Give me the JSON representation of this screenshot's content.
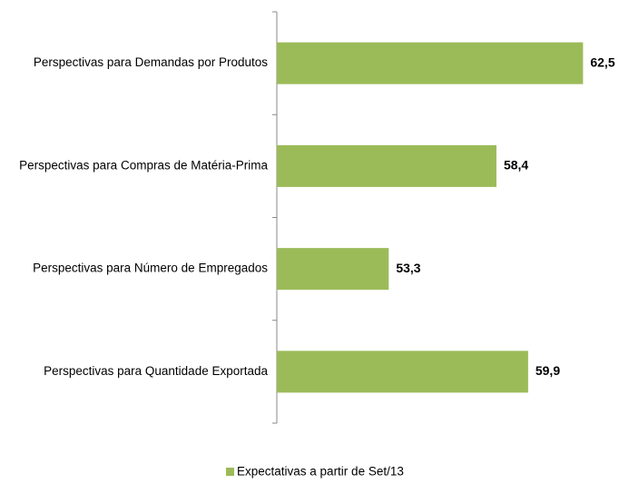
{
  "chart_data": {
    "type": "bar",
    "orientation": "horizontal",
    "categories": [
      "Perspectivas para Demandas por Produtos",
      "Perspectivas para Compras de Matéria-Prima",
      "Perspectivas para Número de Empregados",
      "Perspectivas para Quantidade Exportada"
    ],
    "series": [
      {
        "name": "Expectativas a partir de Set/13",
        "color": "#9bbb59",
        "values": [
          62.5,
          58.4,
          53.3,
          59.9
        ],
        "value_labels": [
          "62,5",
          "58,4",
          "53,3",
          "59,9"
        ]
      }
    ],
    "xlim": [
      48,
      63
    ],
    "legend": "bottom"
  }
}
